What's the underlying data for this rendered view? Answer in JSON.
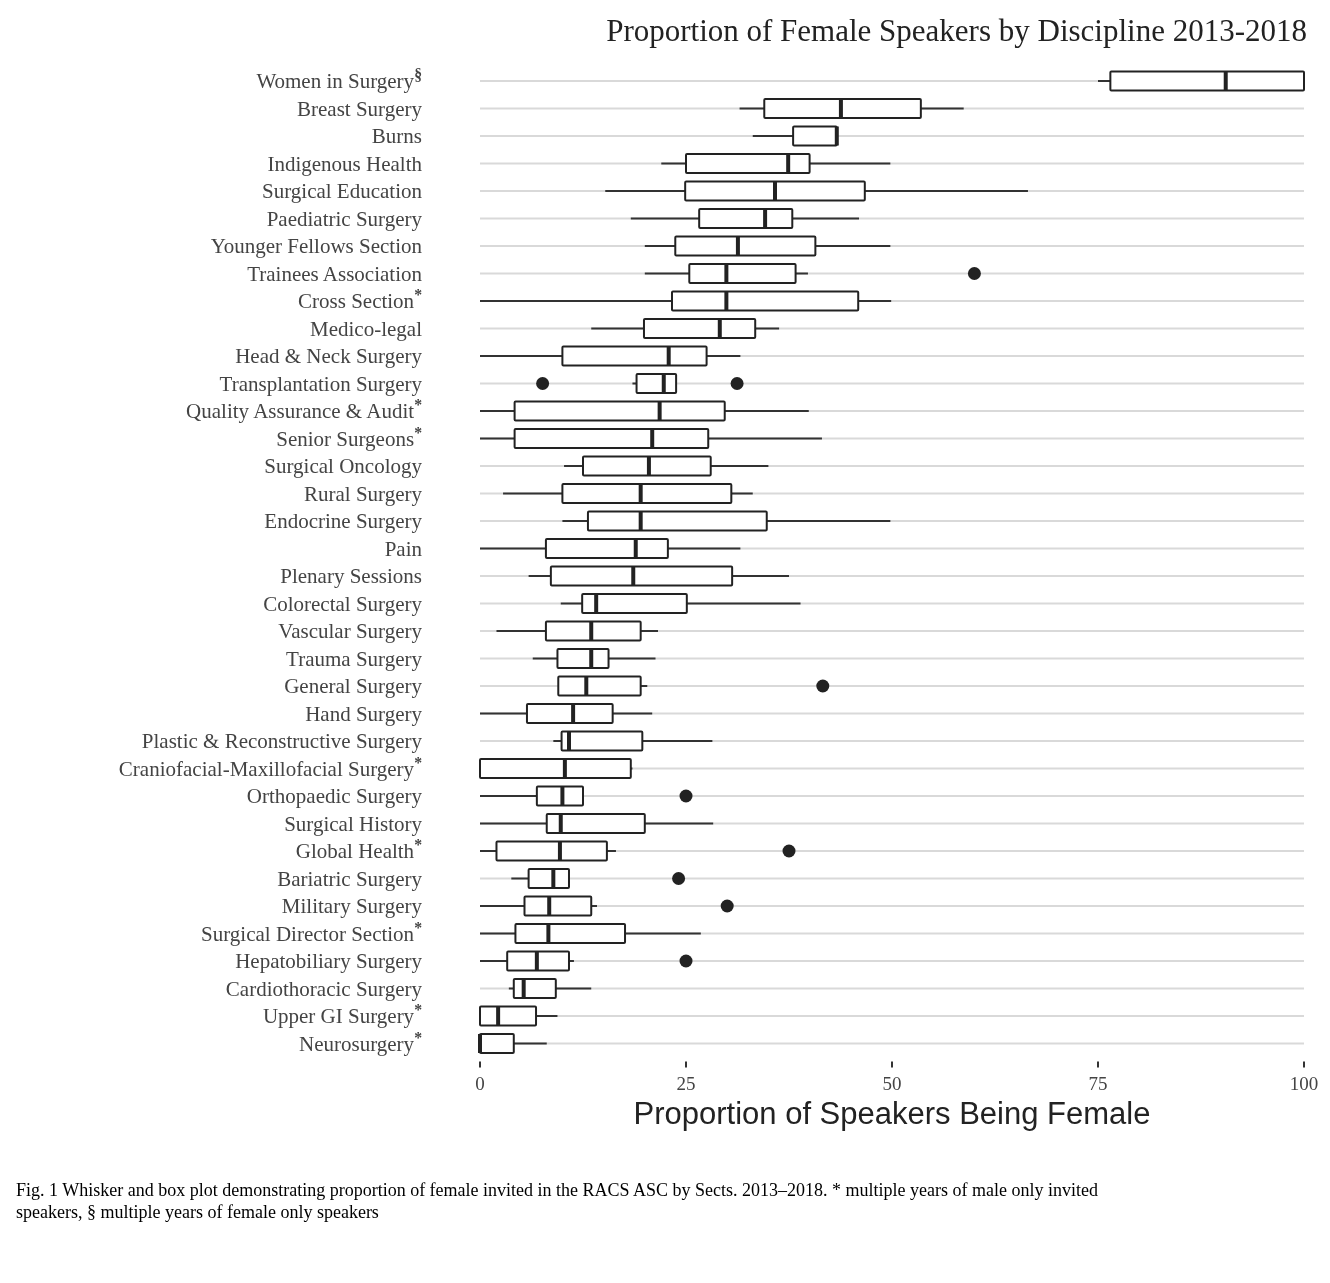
{
  "chart_data": {
    "type": "box",
    "orientation": "horizontal",
    "title": "Proportion of Female Speakers by Discipline 2013-2018",
    "xlabel": "Proportion of Speakers Being Female",
    "categories": [
      "Women in Surgery$^{§}$",
      "Breast Surgery",
      "Burns",
      "Indigenous Health",
      "Surgical Education",
      "Paediatric Surgery",
      "Younger Fellows Section",
      "Trainees Association",
      "Cross Section$^{*}$",
      "Medico-legal",
      "Head & Neck Surgery",
      "Transplantation Surgery",
      "Quality Assurance & Audit$^{*}$",
      "Senior Surgeons$^{*}$",
      "Surgical Oncology",
      "Rural Surgery",
      "Endocrine Surgery",
      "Pain",
      "Plenary Sessions",
      "Colorectal  Surgery",
      "Vascular Surgery",
      "Trauma Surgery",
      "General Surgery",
      "Hand Surgery",
      "Plastic & Reconstructive Surgery",
      "Craniofacial-Maxillofacial Surgery$^{*}$",
      "Orthopaedic Surgery",
      "Surgical History",
      "Global Health$^{*}$",
      "Bariatric Surgery",
      "Military Surgery",
      "Surgical Director Section$^{*}$",
      "Hepatobiliary Surgery",
      "Cardiothoracic Surgery",
      "Upper GI Surgery$^{*}$",
      "Neurosurgery$^{*}$"
    ],
    "boxes": [
      {
        "low": 75,
        "q1": 76.5,
        "median": 90.5,
        "q3": 100,
        "high": 100
      },
      {
        "low": 31.5,
        "q1": 34.5,
        "median": 43.8,
        "q3": 53.5,
        "high": 58.7
      },
      {
        "low": 33.1,
        "q1": 38,
        "median": 43.3,
        "q3": 43.3,
        "high": 43.3
      },
      {
        "low": 22,
        "q1": 25,
        "median": 37.4,
        "q3": 40,
        "high": 49.8
      },
      {
        "low": 15.2,
        "q1": 24.9,
        "median": 35.8,
        "q3": 46.7,
        "high": 66.5
      },
      {
        "low": 18.3,
        "q1": 26.6,
        "median": 34.6,
        "q3": 37.9,
        "high": 46
      },
      {
        "low": 20,
        "q1": 23.7,
        "median": 31.3,
        "q3": 40.7,
        "high": 49.8
      },
      {
        "low": 20,
        "q1": 25.4,
        "median": 29.9,
        "q3": 38.3,
        "high": 39.8,
        "outliers": [
          60
        ]
      },
      {
        "low": 0,
        "q1": 23.3,
        "median": 29.9,
        "q3": 45.9,
        "high": 49.9
      },
      {
        "low": 13.5,
        "q1": 19.9,
        "median": 29.1,
        "q3": 33.4,
        "high": 36.3
      },
      {
        "low": 0,
        "q1": 10,
        "median": 22.9,
        "q3": 27.5,
        "high": 31.6
      },
      {
        "low": 18.5,
        "q1": 19,
        "median": 22.3,
        "q3": 23.8,
        "high": 23.8,
        "outliers": [
          7.6,
          31.2
        ]
      },
      {
        "low": 0,
        "q1": 4.2,
        "median": 21.8,
        "q3": 29.7,
        "high": 39.9
      },
      {
        "low": 0,
        "q1": 4.2,
        "median": 20.9,
        "q3": 27.7,
        "high": 41.5
      },
      {
        "low": 10.2,
        "q1": 12.5,
        "median": 20.5,
        "q3": 28,
        "high": 35
      },
      {
        "low": 2.8,
        "q1": 10,
        "median": 19.5,
        "q3": 30.5,
        "high": 33.1
      },
      {
        "low": 10,
        "q1": 13.1,
        "median": 19.5,
        "q3": 34.8,
        "high": 49.8
      },
      {
        "low": 0,
        "q1": 8,
        "median": 18.9,
        "q3": 22.8,
        "high": 31.6
      },
      {
        "low": 5.9,
        "q1": 8.6,
        "median": 18.6,
        "q3": 30.6,
        "high": 37.5
      },
      {
        "low": 9.8,
        "q1": 12.4,
        "median": 14.1,
        "q3": 25.1,
        "high": 38.9
      },
      {
        "low": 2,
        "q1": 8,
        "median": 13.5,
        "q3": 19.5,
        "high": 21.6
      },
      {
        "low": 6.4,
        "q1": 9.4,
        "median": 13.5,
        "q3": 15.6,
        "high": 21.3
      },
      {
        "low": 9.5,
        "q1": 9.5,
        "median": 12.9,
        "q3": 19.5,
        "high": 20.3,
        "outliers": [
          41.6
        ]
      },
      {
        "low": 0,
        "q1": 5.7,
        "median": 11.3,
        "q3": 16.1,
        "high": 20.9
      },
      {
        "low": 8.9,
        "q1": 9.9,
        "median": 10.8,
        "q3": 19.7,
        "high": 28.2
      },
      {
        "low": 0,
        "q1": 0,
        "median": 10.3,
        "q3": 18.3,
        "high": 18.5
      },
      {
        "low": 0,
        "q1": 6.9,
        "median": 10,
        "q3": 12.5,
        "high": 12.5,
        "outliers": [
          25
        ]
      },
      {
        "low": 0,
        "q1": 8.1,
        "median": 9.8,
        "q3": 20,
        "high": 28.3
      },
      {
        "low": 0,
        "q1": 2,
        "median": 9.7,
        "q3": 15.4,
        "high": 16.5,
        "outliers": [
          37.5
        ]
      },
      {
        "low": 3.8,
        "q1": 5.9,
        "median": 8.9,
        "q3": 10.8,
        "high": 10.8,
        "outliers": [
          24.1
        ]
      },
      {
        "low": 0,
        "q1": 5.4,
        "median": 8.4,
        "q3": 13.5,
        "high": 14.2,
        "outliers": [
          30
        ]
      },
      {
        "low": 0,
        "q1": 4.3,
        "median": 8.3,
        "q3": 17.6,
        "high": 26.8
      },
      {
        "low": 0,
        "q1": 3.3,
        "median": 6.9,
        "q3": 10.8,
        "high": 11.4,
        "outliers": [
          25
        ]
      },
      {
        "low": 3.5,
        "q1": 4.1,
        "median": 5.3,
        "q3": 9.2,
        "high": 13.5
      },
      {
        "low": 0,
        "q1": 0,
        "median": 2.2,
        "q3": 6.8,
        "high": 9.4
      },
      {
        "low": 0,
        "q1": 0,
        "median": 0,
        "q3": 4.1,
        "high": 8.1
      }
    ],
    "xlim": [
      0,
      100
    ],
    "xticks": [
      0,
      25,
      50,
      75,
      100
    ],
    "grid": "y",
    "annotations": [
      "Fig. 1  Whisker and box plot demonstrating proportion of female invited in the RACS ASC by Sects. 2013–2018. * multiple years of male only invited speakers, § multiple years of female only speakers"
    ]
  }
}
